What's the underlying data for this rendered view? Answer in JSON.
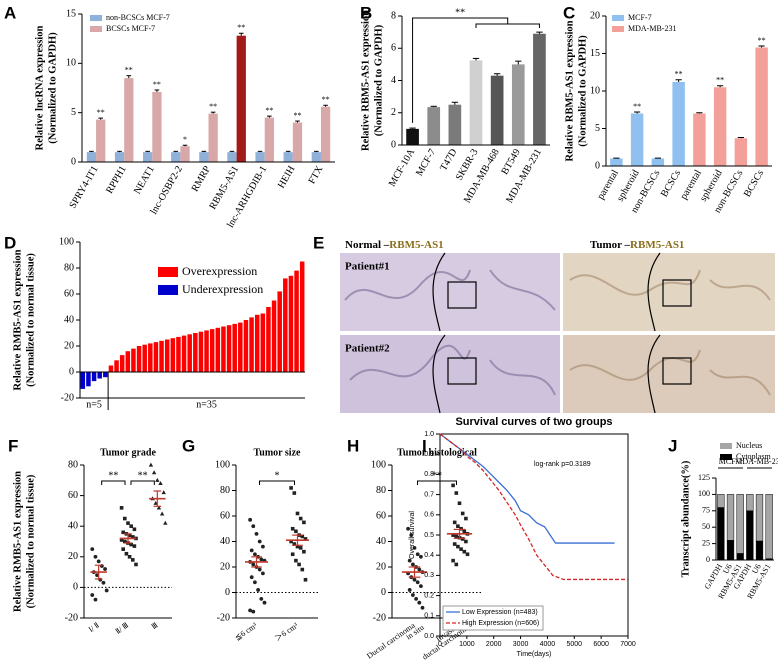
{
  "chart_data": [
    {
      "panel": "A",
      "type": "bar",
      "ylabel": [
        "Relative lncRNA expression",
        "(Normalized to GAPDH)"
      ],
      "categories": [
        "SPRY4-IT1",
        "RPPH1",
        "NEAT1",
        "lnc-OSBP2-2",
        "RMRP",
        "RBM5-AS1",
        "lnc-ARHGDIB-1",
        "HEIH",
        "FTX"
      ],
      "series": [
        {
          "name": "non-BCSCs MCF-7",
          "color": "#8fb0d8",
          "values": [
            1,
            1,
            1,
            1,
            1,
            1,
            1,
            1,
            1
          ],
          "errors": [
            0.08,
            0.08,
            0.08,
            0.08,
            0.08,
            0.08,
            0.08,
            0.08,
            0.08
          ]
        },
        {
          "name": "BCSCs MCF-7",
          "color": "#d8a8a8",
          "colors": [
            "#d8a8a8",
            "#d8a8a8",
            "#d8a8a8",
            "#d8a8a8",
            "#d8a8a8",
            "#a31a1a",
            "#d8a8a8",
            "#d8a8a8",
            "#d8a8a8"
          ],
          "values": [
            4.3,
            8.5,
            7.1,
            1.6,
            4.9,
            12.8,
            4.5,
            4.0,
            5.6
          ],
          "errors": [
            0.15,
            0.25,
            0.2,
            0.1,
            0.15,
            0.25,
            0.15,
            0.15,
            0.15
          ],
          "significance": [
            "**",
            "**",
            "**",
            "*",
            "**",
            "**",
            "**",
            "**",
            "**"
          ]
        }
      ],
      "ylim": [
        0,
        15
      ],
      "yticks": [
        0,
        5,
        10,
        15
      ],
      "legend": "upper left"
    },
    {
      "panel": "B",
      "type": "bar",
      "ylabel": [
        "Relative RBM5-AS1 expression",
        "(Normalized to GAPDH)"
      ],
      "categories": [
        "MCF-10A",
        "MCF-7",
        "T47D",
        "SKBR-3",
        "MDA-MB-468",
        "BT549",
        "MDA-MB-231"
      ],
      "values": [
        1,
        2.35,
        2.5,
        5.25,
        4.3,
        5.0,
        6.9
      ],
      "errors": [
        0.05,
        0.05,
        0.15,
        0.12,
        0.12,
        0.2,
        0.1
      ],
      "colors": [
        "#111111",
        "#8c8c8c",
        "#7a7a7a",
        "#d0d0d0",
        "#555555",
        "#9a9a9a",
        "#666666"
      ],
      "ylim": [
        0,
        8
      ],
      "yticks": [
        0,
        2,
        4,
        6,
        8
      ],
      "annotations": [
        "**"
      ]
    },
    {
      "panel": "C",
      "type": "bar",
      "ylabel": [
        "Relative RBM5-AS1 expression",
        "(Normalized to GAPDH)"
      ],
      "categories": [
        "parental",
        "spheroid",
        "non-BCSCs",
        "BCSCs",
        "parental",
        "spheroid",
        "non-BCSCs",
        "BCSCs"
      ],
      "series": [
        {
          "name": "MCF-7",
          "color": "#8fc0f0",
          "values": [
            1,
            7,
            1,
            11.2,
            null,
            null,
            null,
            null
          ],
          "errors": [
            0.05,
            0.2,
            0.05,
            0.3,
            null,
            null,
            null,
            null
          ],
          "significance": [
            null,
            "**",
            null,
            "**",
            null,
            null,
            null,
            null
          ]
        },
        {
          "name": "MDA-MB-231",
          "color": "#f4a09a",
          "values": [
            null,
            null,
            null,
            null,
            7,
            10.5,
            3.7,
            15.8
          ],
          "errors": [
            null,
            null,
            null,
            null,
            0.1,
            0.2,
            0.1,
            0.2
          ],
          "significance": [
            null,
            null,
            null,
            null,
            null,
            "**",
            null,
            "**"
          ]
        }
      ],
      "ylim": [
        0,
        20
      ],
      "yticks": [
        0,
        5,
        10,
        15,
        20
      ],
      "legend": "upper left"
    },
    {
      "panel": "D",
      "type": "bar",
      "ylabel": [
        "Relative RMB5-AS1 expression",
        "(Normalized to normal tissue)"
      ],
      "series": [
        {
          "name": "Overexpression",
          "color": "#ff0000",
          "values": [
            null,
            null,
            null,
            null,
            null,
            5,
            9,
            13,
            16,
            18,
            20,
            21,
            22,
            23,
            24,
            25,
            26,
            27,
            28,
            29,
            30,
            31,
            32,
            33,
            34,
            35,
            36,
            37,
            38,
            40,
            42,
            44,
            45,
            50,
            55,
            62,
            72,
            74,
            78,
            85
          ]
        },
        {
          "name": "Underexpression",
          "color": "#0000cc",
          "values": [
            -13,
            -11,
            -7,
            -5,
            -4,
            null,
            null,
            null,
            null,
            null,
            null,
            null,
            null,
            null,
            null,
            null,
            null,
            null,
            null,
            null,
            null,
            null,
            null,
            null,
            null,
            null,
            null,
            null,
            null,
            null,
            null,
            null,
            null,
            null,
            null,
            null,
            null,
            null,
            null,
            null
          ]
        }
      ],
      "ylim": [
        -20,
        100
      ],
      "yticks": [
        -20,
        0,
        20,
        40,
        60,
        80,
        100
      ],
      "group_labels": [
        "n=5",
        "n=35"
      ],
      "legend": "upper left"
    },
    {
      "panel": "F",
      "type": "strip",
      "title": "Tumor grade",
      "ylabel": [
        "Relative RMB5-AS1 expression",
        "(Normalized to normal tissue)"
      ],
      "markers": [
        "circle",
        "square",
        "triangle"
      ],
      "color": "#222222",
      "mean_color": "#c0392b",
      "groups": [
        {
          "name": "Ⅰ/ Ⅱ",
          "values": [
            25,
            20,
            17,
            14,
            12,
            10,
            8,
            5,
            3,
            -2,
            -5,
            -8
          ],
          "mean": 10,
          "sem": 4.5
        },
        {
          "name": "Ⅱ/ Ⅲ",
          "values": [
            52,
            45,
            42,
            40,
            38,
            36,
            35,
            34,
            33,
            32,
            31,
            30,
            29,
            28,
            27,
            25,
            22,
            20,
            18,
            15
          ],
          "mean": 32,
          "sem": 3
        },
        {
          "name": "Ⅲ",
          "values": [
            80,
            75,
            70,
            68,
            62,
            58,
            55,
            52,
            48,
            42
          ],
          "mean": 58,
          "sem": 5
        }
      ],
      "ylim": [
        -20,
        80
      ],
      "yticks": [
        -20,
        0,
        20,
        40,
        60,
        80
      ],
      "comparisons": [
        "**",
        "**"
      ]
    },
    {
      "panel": "G",
      "type": "strip",
      "title": "Tumor size",
      "markers": [
        "circle",
        "square"
      ],
      "color": "#222222",
      "mean_color": "#c0392b",
      "groups": [
        {
          "name": "≦6 cm³",
          "values": [
            57,
            52,
            46,
            40,
            36,
            33,
            30,
            28,
            26,
            25,
            24,
            22,
            20,
            18,
            15,
            12,
            8,
            2,
            -5,
            -8,
            -14,
            -15
          ],
          "mean": 24,
          "sem": 4
        },
        {
          "name": "＞6 cm³",
          "values": [
            82,
            78,
            62,
            58,
            55,
            50,
            48,
            45,
            44,
            42,
            40,
            38,
            36,
            35,
            32,
            30,
            25,
            22,
            18,
            10
          ],
          "mean": 41,
          "sem": 4
        }
      ],
      "ylim": [
        -20,
        100
      ],
      "yticks": [
        -20,
        0,
        20,
        40,
        60,
        80,
        100
      ],
      "comparisons": [
        "*"
      ]
    },
    {
      "panel": "H",
      "type": "strip",
      "title": "Tumor histological",
      "markers": [
        "circle",
        "square"
      ],
      "color": "#222222",
      "mean_color": "#c0392b",
      "groups": [
        {
          "name": [
            "Ductal carcinoma",
            "in situ"
          ],
          "values": [
            50,
            45,
            35,
            30,
            28,
            25,
            22,
            20,
            18,
            16,
            15,
            12,
            10,
            8,
            5,
            2,
            -2,
            -5,
            -8,
            -12
          ],
          "mean": 16,
          "sem": 4
        },
        {
          "name": [
            "Invasive",
            "ductal carcinoma"
          ],
          "values": [
            84,
            78,
            70,
            62,
            58,
            55,
            52,
            50,
            48,
            46,
            45,
            44,
            43,
            42,
            40,
            38,
            36,
            34,
            32,
            30,
            25,
            22
          ],
          "mean": 46,
          "sem": 3.5
        }
      ],
      "ylim": [
        -20,
        100
      ],
      "yticks": [
        -20,
        0,
        20,
        40,
        60,
        80,
        100
      ],
      "comparisons": [
        "**"
      ]
    },
    {
      "panel": "I",
      "type": "line",
      "title": "Survival curves of two groups",
      "ylabel": "Overall survival",
      "xlabel": "Time(days)",
      "annotations": [
        "log-rank p=0.3189"
      ],
      "series": [
        {
          "name": "Low Expression (n=483)",
          "color": "#3b6fd4",
          "line_style": "solid",
          "x": [
            0,
            200,
            400,
            600,
            800,
            1000,
            1300,
            1600,
            1900,
            2200,
            2500,
            2800,
            3000,
            3300,
            3600,
            3900,
            4300,
            4600,
            5000,
            6500
          ],
          "values": [
            1,
            0.98,
            0.96,
            0.94,
            0.92,
            0.9,
            0.87,
            0.84,
            0.8,
            0.76,
            0.72,
            0.67,
            0.62,
            0.6,
            0.56,
            0.54,
            0.46,
            0.46,
            0.46,
            0.46
          ]
        },
        {
          "name": "High Expression (n=606)",
          "color": "#d62728",
          "line_style": "dashed",
          "x": [
            0,
            200,
            400,
            600,
            800,
            1000,
            1300,
            1600,
            1900,
            2200,
            2500,
            2800,
            3000,
            3300,
            3600,
            3900,
            4200,
            4600,
            5000,
            7000
          ],
          "values": [
            1,
            0.98,
            0.96,
            0.94,
            0.92,
            0.89,
            0.86,
            0.82,
            0.77,
            0.72,
            0.66,
            0.6,
            0.55,
            0.48,
            0.4,
            0.35,
            0.3,
            0.28,
            0.28,
            0.28
          ]
        }
      ],
      "xlim": [
        0,
        7000
      ],
      "xticks": [
        0,
        1000,
        2000,
        3000,
        4000,
        5000,
        6000,
        7000
      ],
      "ylim": [
        0,
        1
      ],
      "yticks": [
        {
          "value": 0,
          "label": "0.0"
        },
        0.1,
        0.2,
        0.3,
        0.4,
        0.5,
        0.6,
        0.7,
        0.8,
        0.9,
        {
          "value": 1,
          "label": "1.0"
        }
      ],
      "legend": "lower left"
    },
    {
      "panel": "J",
      "type": "bar",
      "stacked": true,
      "ylabel": "Transcript abundance(%)",
      "categories": [
        "GAPDH",
        "U6",
        "RBM5-AS1",
        "GAPDH",
        "U6",
        "RBM5-AS1"
      ],
      "series": [
        {
          "name": "Nucleus",
          "color": "#a6a6a6",
          "values": [
            20,
            70,
            90,
            25,
            71,
            98
          ]
        },
        {
          "name": "Cytoplasm",
          "color": "#000000",
          "values": [
            80,
            30,
            10,
            75,
            29,
            2
          ]
        }
      ],
      "group_labels": [
        "MCF-7",
        "MDA-MB-231"
      ],
      "ylim": [
        0,
        125
      ],
      "yticks": [
        0,
        25,
        50,
        75,
        100,
        125
      ],
      "legend": "upper left"
    }
  ],
  "micrographs": {
    "panel": "E",
    "columns": [
      {
        "condition": "Normal –",
        "gene": "RBM5-AS1"
      },
      {
        "condition": "Tumor –",
        "gene": "RBM5-AS1"
      }
    ],
    "rows": [
      "Patient#1",
      "Patient#2"
    ]
  }
}
